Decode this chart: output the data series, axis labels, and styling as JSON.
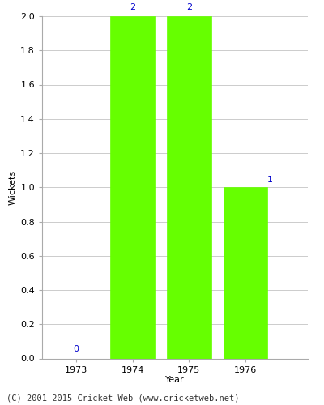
{
  "years": [
    1973,
    1974,
    1975,
    1976
  ],
  "values": [
    0,
    2,
    2,
    1
  ],
  "bar_color": "#66ff00",
  "label_color": "#0000cc",
  "ylabel": "Wickets",
  "xlabel": "Year",
  "ylim": [
    0,
    2.0
  ],
  "yticks": [
    0.0,
    0.2,
    0.4,
    0.6,
    0.8,
    1.0,
    1.2,
    1.4,
    1.6,
    1.8,
    2.0
  ],
  "footer": "(C) 2001-2015 Cricket Web (www.cricketweb.net)",
  "bg_color": "#ffffff",
  "axes_bg_color": "#ffffff",
  "bar_width": 0.78,
  "label_fontsize": 8,
  "axis_fontsize": 8,
  "footer_fontsize": 7.5,
  "grid_color": "#cccccc"
}
